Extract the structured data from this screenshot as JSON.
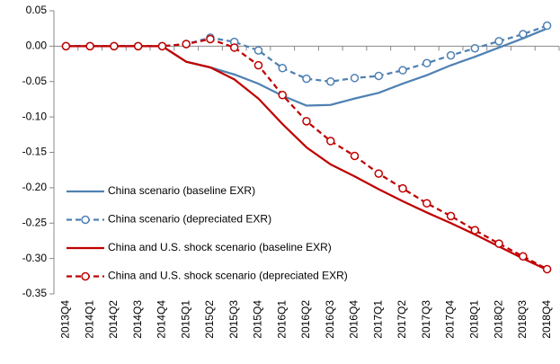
{
  "chart_data": {
    "type": "line",
    "categories": [
      "2013Q4",
      "2014Q1",
      "2014Q2",
      "2014Q3",
      "2014Q4",
      "2015Q1",
      "2015Q2",
      "2015Q3",
      "2015Q4",
      "2016Q1",
      "2016Q2",
      "2016Q3",
      "2016Q4",
      "2017Q1",
      "2017Q2",
      "2017Q3",
      "2017Q4",
      "2018Q1",
      "2018Q2",
      "2018Q3",
      "2018Q4"
    ],
    "series": [
      {
        "name": "China scenario (baseline EXR)",
        "color": "#4f81b3",
        "dashed": false,
        "marker": "none",
        "values": [
          0,
          0,
          0,
          0,
          0,
          -0.022,
          -0.03,
          -0.04,
          -0.053,
          -0.07,
          -0.084,
          -0.083,
          -0.074,
          -0.066,
          -0.053,
          -0.041,
          -0.027,
          -0.015,
          -0.002,
          0.011,
          0.025
        ]
      },
      {
        "name": "China scenario (depreciated EXR)",
        "color": "#4f81b3",
        "dashed": true,
        "marker": "circle",
        "values": [
          0,
          0,
          0,
          0,
          0,
          0.003,
          0.012,
          0.006,
          -0.006,
          -0.031,
          -0.046,
          -0.05,
          -0.045,
          -0.042,
          -0.034,
          -0.024,
          -0.013,
          -0.003,
          0.007,
          0.017,
          0.029
        ]
      },
      {
        "name": "China and U.S. shock scenario (baseline EXR)",
        "color": "#c00000",
        "dashed": false,
        "marker": "none",
        "values": [
          0,
          0,
          0,
          0,
          0,
          -0.022,
          -0.03,
          -0.047,
          -0.074,
          -0.11,
          -0.143,
          -0.167,
          -0.184,
          -0.202,
          -0.219,
          -0.235,
          -0.25,
          -0.266,
          -0.283,
          -0.3,
          -0.316
        ]
      },
      {
        "name": "China and U.S. shock scenario (depreciated EXR)",
        "color": "#c00000",
        "dashed": true,
        "marker": "circle",
        "values": [
          0,
          0,
          0,
          0,
          0,
          0.003,
          0.01,
          -0.002,
          -0.027,
          -0.069,
          -0.106,
          -0.134,
          -0.155,
          -0.18,
          -0.201,
          -0.222,
          -0.24,
          -0.26,
          -0.279,
          -0.297,
          -0.315
        ]
      }
    ],
    "ylim": [
      -0.35,
      0.05
    ],
    "yticks": [
      0.05,
      {
        "value": 0,
        "label": "0.00"
      },
      -0.05,
      {
        "value": -0.1,
        "label": "-0.10"
      },
      -0.15,
      {
        "value": -0.2,
        "label": "-0.20"
      },
      -0.25,
      {
        "value": -0.3,
        "label": "-0.30"
      },
      -0.35
    ],
    "legend": "lower left",
    "grid": false
  }
}
